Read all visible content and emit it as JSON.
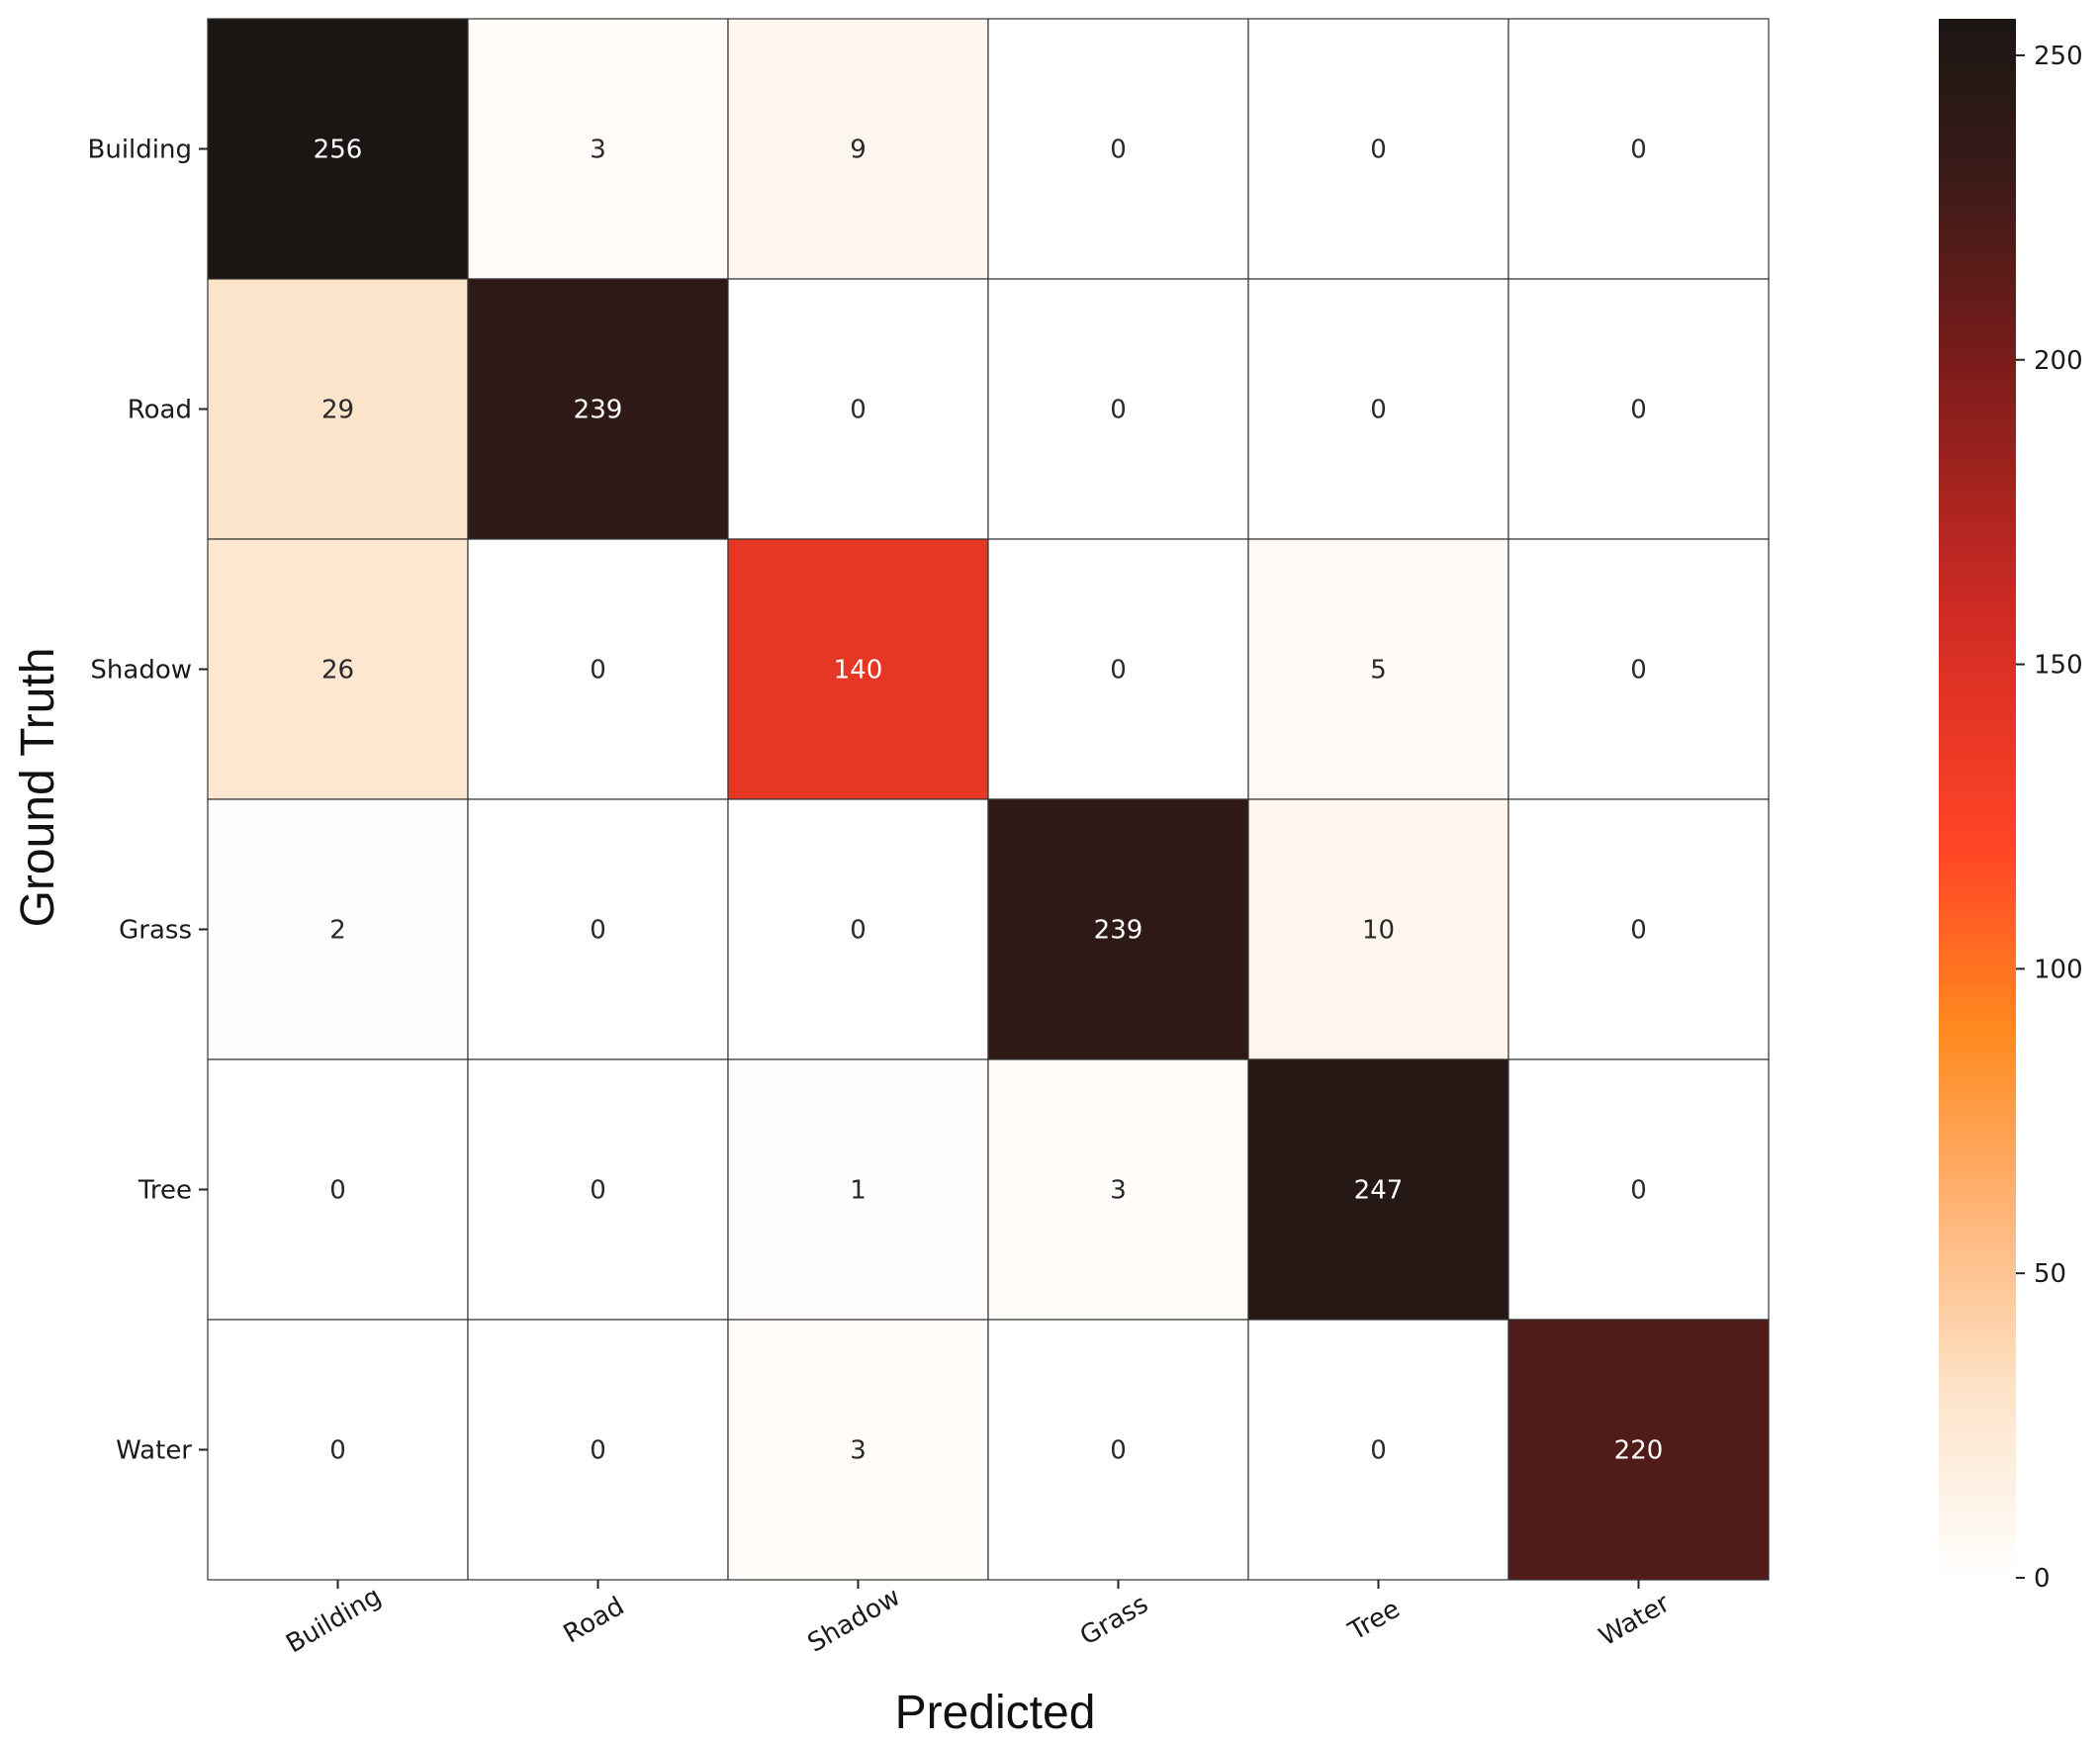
{
  "chart_data": {
    "type": "heatmap",
    "title": "",
    "xlabel": "Predicted",
    "ylabel": "Ground Truth",
    "x_categories": [
      "Building",
      "Road",
      "Shadow",
      "Grass",
      "Tree",
      "Water"
    ],
    "y_categories": [
      "Building",
      "Road",
      "Shadow",
      "Grass",
      "Tree",
      "Water"
    ],
    "values": [
      [
        256,
        3,
        9,
        0,
        0,
        0
      ],
      [
        29,
        239,
        0,
        0,
        0,
        0
      ],
      [
        26,
        0,
        140,
        0,
        5,
        0
      ],
      [
        2,
        0,
        0,
        239,
        10,
        0
      ],
      [
        0,
        0,
        1,
        3,
        247,
        0
      ],
      [
        0,
        0,
        3,
        0,
        0,
        220
      ]
    ],
    "colorbar": {
      "colormap": "gist_heat_r",
      "range": [
        0,
        256
      ],
      "ticks": [
        0,
        50,
        100,
        150,
        200,
        250
      ]
    },
    "x_tick_rotation": -30
  }
}
